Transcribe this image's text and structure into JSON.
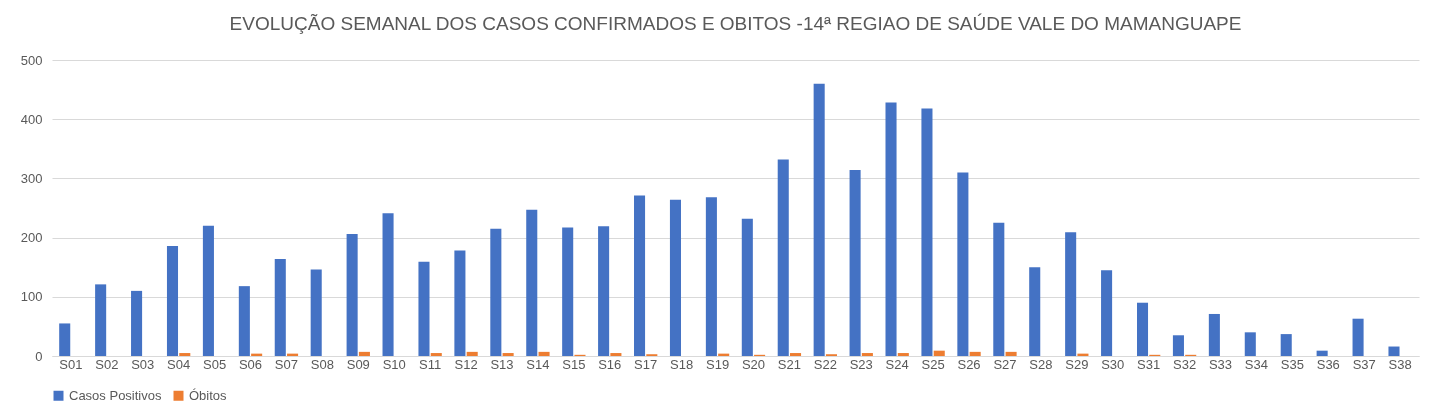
{
  "chart_data": {
    "type": "bar",
    "title": "EVOLUÇÃO SEMANAL DOS CASOS CONFIRMADOS E OBITOS -14ª REGIAO DE SAÚDE VALE DO MAMANGUAPE",
    "categories": [
      "S01",
      "S02",
      "S03",
      "S04",
      "S05",
      "S06",
      "S07",
      "S08",
      "S09",
      "S10",
      "S11",
      "S12",
      "S13",
      "S14",
      "S15",
      "S16",
      "S17",
      "S18",
      "S19",
      "S20",
      "S21",
      "S22",
      "S23",
      "S24",
      "S25",
      "S26",
      "S27",
      "S28",
      "S29",
      "S30",
      "S31",
      "S32",
      "S33",
      "S34",
      "S35",
      "S36",
      "S37",
      "S38"
    ],
    "series": [
      {
        "name": "Casos Positivos",
        "color": "#4472c4",
        "values": [
          55,
          121,
          110,
          186,
          220,
          118,
          164,
          146,
          206,
          241,
          159,
          178,
          215,
          247,
          217,
          219,
          271,
          264,
          268,
          232,
          332,
          460,
          314,
          428,
          418,
          310,
          225,
          150,
          209,
          145,
          90,
          35,
          71,
          40,
          37,
          9,
          63,
          16
        ]
      },
      {
        "name": "Óbitos",
        "color": "#ed7d31",
        "values": [
          0,
          0,
          0,
          5,
          0,
          4,
          4,
          0,
          7,
          0,
          5,
          7,
          5,
          7,
          2,
          5,
          3,
          0,
          4,
          2,
          5,
          3,
          5,
          5,
          9,
          7,
          7,
          0,
          4,
          0,
          2,
          2,
          0,
          0,
          0,
          0,
          0,
          0
        ]
      }
    ],
    "ylim": [
      0,
      500
    ],
    "yticks": [
      0,
      100,
      200,
      300,
      400,
      500
    ],
    "grid": "y",
    "legend": "bottom"
  }
}
